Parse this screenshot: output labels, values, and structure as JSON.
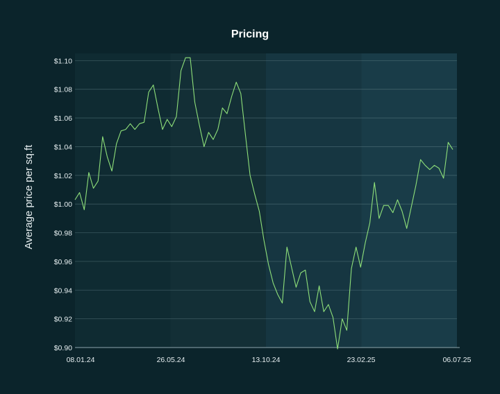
{
  "chart_data": {
    "type": "line",
    "title": "Pricing",
    "xlabel": "",
    "ylabel": "Average price per sq.ft",
    "ylim": [
      0.9,
      1.105
    ],
    "yticks": [
      "$0.90",
      "$0.92",
      "$0.94",
      "$0.96",
      "$0.98",
      "$1.00",
      "$1.02",
      "$1.04",
      "$1.06",
      "$1.08",
      "$1.10"
    ],
    "yvalues": [
      0.9,
      0.92,
      0.94,
      0.96,
      0.98,
      1.0,
      1.02,
      1.04,
      1.06,
      1.08,
      1.1
    ],
    "xticks": [
      "08.01.24",
      "26.05.24",
      "13.10.24",
      "23.02.25",
      "06.07.25"
    ],
    "grid": true,
    "band_colors": [
      "#0f2b32",
      "#132f36",
      "#163641",
      "#193c48"
    ],
    "line_color": "#8fe07a",
    "series": [
      {
        "values": [
          1.003,
          1.008,
          0.996,
          1.022,
          1.011,
          1.016,
          1.047,
          1.033,
          1.023,
          1.042,
          1.051,
          1.052,
          1.056,
          1.052,
          1.056,
          1.057,
          1.078,
          1.083,
          1.067,
          1.052,
          1.059,
          1.054,
          1.061,
          1.093,
          1.102,
          1.102,
          1.071,
          1.055,
          1.04,
          1.05,
          1.045,
          1.052,
          1.067,
          1.063,
          1.075,
          1.085,
          1.077,
          1.048,
          1.02,
          1.007,
          0.995,
          0.975,
          0.958,
          0.945,
          0.937,
          0.931,
          0.97,
          0.956,
          0.942,
          0.952,
          0.954,
          0.932,
          0.925,
          0.943,
          0.925,
          0.93,
          0.921,
          0.899,
          0.92,
          0.912,
          0.955,
          0.97,
          0.956,
          0.973,
          0.987,
          1.015,
          0.99,
          0.999,
          0.999,
          0.994,
          1.003,
          0.995,
          0.983,
          0.998,
          1.013,
          1.031,
          1.027,
          1.024,
          1.027,
          1.025,
          1.018,
          1.043,
          1.038
        ]
      }
    ]
  }
}
